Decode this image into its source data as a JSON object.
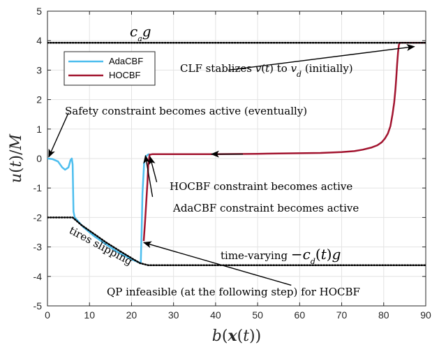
{
  "chart_data": {
    "type": "line",
    "xlabel": "b(x(t))",
    "ylabel": "u(t)/M",
    "xlim": [
      0,
      90
    ],
    "ylim": [
      -5,
      5
    ],
    "xticks": [
      0,
      10,
      20,
      30,
      40,
      50,
      60,
      70,
      80,
      90
    ],
    "yticks": [
      -5,
      -4,
      -3,
      -2,
      -1,
      0,
      1,
      2,
      3,
      4,
      5
    ],
    "grid": true,
    "legend_position": "top-left",
    "series": [
      {
        "name": "AdaCBF",
        "color": "#4DBEEE",
        "x": [
          0,
          1.2,
          2.5,
          3.5,
          4.2,
          5.0,
          5.5,
          5.8,
          6.0,
          6.2,
          6.5,
          8.5,
          11,
          14,
          17,
          20,
          22.2,
          22.4,
          22.6,
          23.0,
          23.5,
          24.0,
          24.3
        ],
        "y": [
          0,
          -0.02,
          -0.1,
          -0.3,
          -0.38,
          -0.3,
          -0.05,
          0,
          -0.2,
          -1.8,
          -2.0,
          -2.32,
          -2.62,
          -2.92,
          -3.2,
          -3.42,
          -3.55,
          -2.5,
          -1.2,
          -0.15,
          0.08,
          0.14,
          0.15
        ]
      },
      {
        "name": "HOCBF",
        "color": "#A2142F",
        "x": [
          22.9,
          23.2,
          23.5,
          23.8,
          24.0,
          24.3,
          25,
          30,
          40,
          50,
          60,
          65,
          70,
          73,
          75,
          77,
          78.5,
          79.5,
          80.3,
          81,
          81.6,
          82.1,
          82.5,
          82.8,
          83.0,
          83.2,
          83.4,
          83.6,
          83.8,
          84.0,
          85,
          90
        ],
        "y": [
          -2.8,
          -2.2,
          -1.5,
          -0.8,
          -0.2,
          0.13,
          0.15,
          0.15,
          0.15,
          0.16,
          0.18,
          0.19,
          0.22,
          0.25,
          0.3,
          0.37,
          0.45,
          0.55,
          0.68,
          0.85,
          1.1,
          1.5,
          1.9,
          2.35,
          2.75,
          3.2,
          3.6,
          3.85,
          3.93,
          3.93,
          3.93,
          3.93
        ]
      },
      {
        "name": "",
        "style": "dotted",
        "color": "#000000",
        "x": [
          0,
          90
        ],
        "y": [
          3.93,
          3.93
        ]
      },
      {
        "name": "",
        "style": "dotted",
        "color": "#000000",
        "x": [
          0,
          6,
          8,
          11,
          14,
          17,
          20,
          22,
          24,
          90
        ],
        "y": [
          -2.0,
          -2.0,
          -2.25,
          -2.55,
          -2.85,
          -3.12,
          -3.38,
          -3.55,
          -3.62,
          -3.62
        ]
      }
    ],
    "annotations": [
      {
        "text": "c_a g",
        "x": 27,
        "y": 4.25
      },
      {
        "text": "CLF stablizes v(t) to v_d (initially)",
        "text_x": 43,
        "text_y": 3.0,
        "arrow_to": [
          87.3,
          3.8
        ]
      },
      {
        "text": "Safety constraint becomes active (eventually)",
        "text_x": 5,
        "text_y": 1.55,
        "arrow_to": [
          0.3,
          0.05
        ]
      },
      {
        "text": "",
        "text_x": 46.5,
        "text_y": 0.15,
        "arrow_to": [
          39,
          0.15
        ]
      },
      {
        "text": "HOCBF constraint becomes active",
        "text_x": 26,
        "text_y": -0.8,
        "arrow_to": [
          24.4,
          0.06
        ]
      },
      {
        "text": "AdaCBF constraint becomes active",
        "text_x": 25,
        "text_y": -1.3,
        "arrow_to": [
          23.3,
          0.1
        ]
      },
      {
        "text": "tires slipping",
        "text_x": 12,
        "text_y": -3.0,
        "arrow_to": null
      },
      {
        "text": "time-varying -c_d(t) g",
        "text_x": 54.5,
        "text_y": -3.15,
        "arrow_to": null
      },
      {
        "text": "QP infeasible (at the following step) for HOCBF",
        "text_x": 58,
        "text_y": -4.3,
        "arrow_to": [
          22.9,
          -2.85
        ]
      }
    ]
  }
}
